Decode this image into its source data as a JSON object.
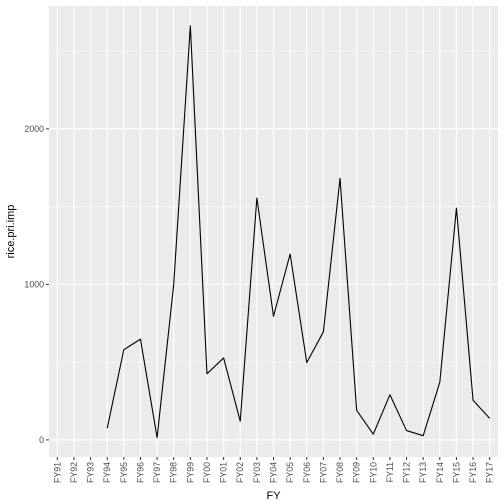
{
  "chart_data": {
    "type": "line",
    "xlabel": "FY",
    "ylabel": "rice.pri.imp",
    "categories": [
      "FY91",
      "FY92",
      "FY93",
      "FY94",
      "FY95",
      "FY96",
      "FY97",
      "FY98",
      "FY99",
      "FY00",
      "FY01",
      "FY02",
      "FY03",
      "FY04",
      "FY05",
      "FY06",
      "FY07",
      "FY08",
      "FY09",
      "FY10",
      "FY11",
      "FY12",
      "FY13",
      "FY14",
      "FY15",
      "FY16",
      "FY17"
    ],
    "series": [
      {
        "values": [
          null,
          null,
          null,
          75,
          580,
          648,
          15,
          1000,
          2663,
          425,
          527,
          120,
          1555,
          795,
          1195,
          497,
          695,
          1682,
          190,
          37,
          290,
          60,
          27,
          370,
          1490,
          255,
          138
        ]
      }
    ],
    "ylim": [
      -110,
      2790
    ],
    "yticks": [
      0,
      1000,
      2000
    ],
    "grid": true,
    "legend": "none",
    "colors": {
      "panel": "#ebebeb",
      "grid_major": "#ffffff",
      "line": "#000000",
      "tick_text": "#4d4d4d"
    }
  }
}
